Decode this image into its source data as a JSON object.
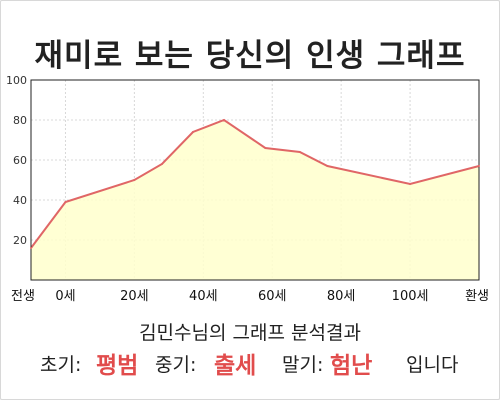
{
  "title": "재미로 보는 당신의 인생 그래프",
  "summary": "김민수님의 그래프 분석결과",
  "result": {
    "early_label": "초기:",
    "early_value": "평범",
    "mid_label": "중기:",
    "mid_value": "출세",
    "late_label": "말기:",
    "late_value": "험난",
    "suffix": "입니다"
  },
  "colors": {
    "line": "#e06666",
    "fill": "#ffffcc",
    "result_highlight": "#e14c4c",
    "grid": "#d8d8d8"
  },
  "chart_data": {
    "type": "area",
    "x": [
      -10,
      0,
      20,
      28,
      37,
      46,
      58,
      68,
      76,
      100,
      120
    ],
    "values": [
      16,
      39,
      50,
      58,
      74,
      80,
      66,
      64,
      57,
      48,
      57
    ],
    "x_ticks": [
      {
        "x": -10,
        "label": "전생"
      },
      {
        "x": 0,
        "label": "0세"
      },
      {
        "x": 20,
        "label": "20세"
      },
      {
        "x": 40,
        "label": "40세"
      },
      {
        "x": 60,
        "label": "60세"
      },
      {
        "x": 80,
        "label": "80세"
      },
      {
        "x": 100,
        "label": "100세"
      },
      {
        "x": 120,
        "label": "환생"
      }
    ],
    "y_ticks": [
      20,
      40,
      60,
      80,
      100
    ],
    "ylim": [
      0,
      100
    ],
    "xlim": [
      -10,
      120
    ],
    "grid": true,
    "legend": "none"
  }
}
